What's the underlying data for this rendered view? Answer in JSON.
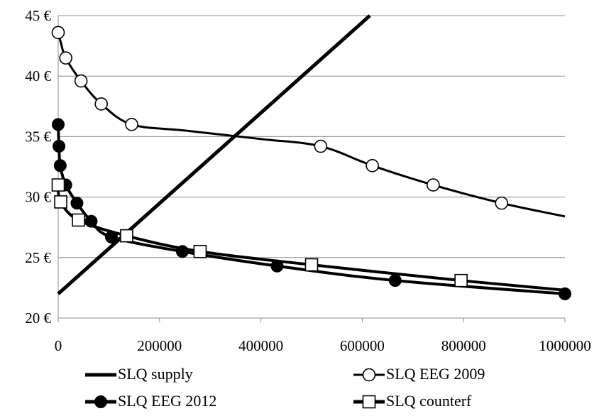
{
  "chart_data": {
    "type": "line",
    "title": "",
    "xlabel": "",
    "ylabel": "",
    "xlim": [
      0,
      1000000
    ],
    "ylim": [
      20,
      45
    ],
    "x_ticks": [
      0,
      200000,
      400000,
      600000,
      800000,
      1000000
    ],
    "x_tick_labels": [
      "0",
      "200000",
      "400000",
      "600000",
      "800000",
      "1000000"
    ],
    "y_ticks": [
      20,
      25,
      30,
      35,
      40,
      45
    ],
    "y_tick_labels": [
      "20 €",
      "25 €",
      "30 €",
      "35 €",
      "40 €",
      "45 €"
    ],
    "grid": "horizontal",
    "legend_position": "bottom",
    "series": [
      {
        "name": "SLQ supply",
        "marker": "none",
        "curve": [
          [
            0,
            22.0
          ],
          [
            615000,
            45.0
          ]
        ],
        "points": []
      },
      {
        "name": "SLQ EEG 2009",
        "marker": "open-circle",
        "curve": [
          [
            0,
            43.6
          ],
          [
            5000,
            42.8
          ],
          [
            15000,
            41.5
          ],
          [
            45000,
            39.6
          ],
          [
            85000,
            37.7
          ],
          [
            145000,
            36.0
          ],
          [
            250000,
            35.5
          ],
          [
            400000,
            34.8
          ],
          [
            518000,
            34.2
          ],
          [
            620000,
            32.6
          ],
          [
            740000,
            31.0
          ],
          [
            875000,
            29.5
          ],
          [
            1000000,
            28.4
          ]
        ],
        "points": [
          [
            0,
            43.6
          ],
          [
            15000,
            41.5
          ],
          [
            45000,
            39.6
          ],
          [
            85000,
            37.7
          ],
          [
            145000,
            36.0
          ],
          [
            518000,
            34.2
          ],
          [
            620000,
            32.6
          ],
          [
            740000,
            31.0
          ],
          [
            875000,
            29.5
          ]
        ]
      },
      {
        "name": "SLQ EEG 2012",
        "marker": "filled-circle",
        "curve": [
          [
            0,
            36.0
          ],
          [
            1500,
            34.2
          ],
          [
            4000,
            32.6
          ],
          [
            15000,
            31.0
          ],
          [
            37000,
            29.5
          ],
          [
            65000,
            28.0
          ],
          [
            105000,
            26.7
          ],
          [
            245000,
            25.5
          ],
          [
            432000,
            24.3
          ],
          [
            665000,
            23.1
          ],
          [
            1000000,
            22.0
          ]
        ],
        "points": [
          [
            0,
            36.0
          ],
          [
            1500,
            34.2
          ],
          [
            4000,
            32.6
          ],
          [
            15000,
            31.0
          ],
          [
            37000,
            29.5
          ],
          [
            65000,
            28.0
          ],
          [
            105000,
            26.7
          ],
          [
            245000,
            25.5
          ],
          [
            432000,
            24.3
          ],
          [
            665000,
            23.1
          ],
          [
            1000000,
            22.0
          ]
        ]
      },
      {
        "name": "SLQ counterf",
        "marker": "open-square",
        "curve": [
          [
            0,
            31.0
          ],
          [
            5000,
            29.6
          ],
          [
            40000,
            28.1
          ],
          [
            135000,
            26.8
          ],
          [
            280000,
            25.5
          ],
          [
            500000,
            24.4
          ],
          [
            795000,
            23.1
          ],
          [
            1000000,
            22.3
          ]
        ],
        "points": [
          [
            0,
            31.0
          ],
          [
            5000,
            29.6
          ],
          [
            40000,
            28.1
          ],
          [
            135000,
            26.8
          ],
          [
            280000,
            25.5
          ],
          [
            500000,
            24.4
          ],
          [
            795000,
            23.1
          ]
        ]
      }
    ]
  }
}
